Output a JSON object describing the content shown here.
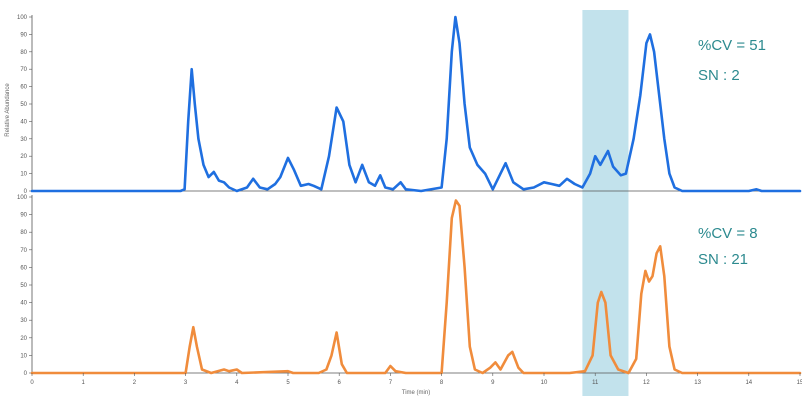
{
  "chart_data": {
    "type": "line",
    "xlabel": "Time (min)",
    "x_ticks": [
      "0",
      "1",
      "2",
      "3",
      "4",
      "5",
      "6",
      "7",
      "8",
      "9",
      "10",
      "11",
      "12",
      "13",
      "14",
      "15"
    ],
    "y_ticks": [
      "0",
      "10",
      "20",
      "30",
      "40",
      "50",
      "60",
      "70",
      "80",
      "90",
      "100"
    ],
    "xlim": [
      0,
      15
    ],
    "ylim": [
      0,
      100
    ],
    "grid": false,
    "highlight_region": {
      "x_start": 10.75,
      "x_end": 11.65,
      "color": "#add8e6"
    },
    "panels": [
      {
        "ylabel": "Relative Abundance",
        "color": "#1f6fe0",
        "annotations": [
          "%CV = 51",
          "SN : 2"
        ],
        "points": [
          [
            0,
            0
          ],
          [
            2.9,
            0
          ],
          [
            2.98,
            1
          ],
          [
            3.05,
            40
          ],
          [
            3.12,
            70
          ],
          [
            3.18,
            50
          ],
          [
            3.25,
            30
          ],
          [
            3.35,
            15
          ],
          [
            3.45,
            8
          ],
          [
            3.55,
            11
          ],
          [
            3.65,
            6
          ],
          [
            3.75,
            5
          ],
          [
            3.85,
            2
          ],
          [
            4.0,
            0
          ],
          [
            4.2,
            2
          ],
          [
            4.32,
            7
          ],
          [
            4.45,
            2
          ],
          [
            4.6,
            1
          ],
          [
            4.75,
            4
          ],
          [
            4.85,
            8
          ],
          [
            5.0,
            19
          ],
          [
            5.12,
            12
          ],
          [
            5.25,
            3
          ],
          [
            5.4,
            4
          ],
          [
            5.5,
            3
          ],
          [
            5.65,
            1
          ],
          [
            5.8,
            20
          ],
          [
            5.95,
            48
          ],
          [
            6.08,
            40
          ],
          [
            6.2,
            15
          ],
          [
            6.32,
            5
          ],
          [
            6.45,
            15
          ],
          [
            6.58,
            5
          ],
          [
            6.7,
            3
          ],
          [
            6.8,
            9
          ],
          [
            6.9,
            2
          ],
          [
            7.05,
            1
          ],
          [
            7.2,
            5
          ],
          [
            7.3,
            1
          ],
          [
            7.6,
            0
          ],
          [
            8.0,
            2
          ],
          [
            8.1,
            30
          ],
          [
            8.2,
            80
          ],
          [
            8.27,
            100
          ],
          [
            8.35,
            85
          ],
          [
            8.45,
            50
          ],
          [
            8.55,
            25
          ],
          [
            8.7,
            15
          ],
          [
            8.85,
            10
          ],
          [
            9.0,
            1
          ],
          [
            9.15,
            10
          ],
          [
            9.25,
            16
          ],
          [
            9.4,
            5
          ],
          [
            9.6,
            1
          ],
          [
            9.8,
            2
          ],
          [
            10.0,
            5
          ],
          [
            10.15,
            4
          ],
          [
            10.3,
            3
          ],
          [
            10.45,
            7
          ],
          [
            10.6,
            4
          ],
          [
            10.75,
            2
          ],
          [
            10.9,
            10
          ],
          [
            11.0,
            20
          ],
          [
            11.1,
            15
          ],
          [
            11.25,
            23
          ],
          [
            11.35,
            14
          ],
          [
            11.5,
            9
          ],
          [
            11.6,
            10
          ],
          [
            11.75,
            30
          ],
          [
            11.88,
            55
          ],
          [
            12.0,
            85
          ],
          [
            12.07,
            90
          ],
          [
            12.15,
            80
          ],
          [
            12.25,
            55
          ],
          [
            12.35,
            30
          ],
          [
            12.45,
            10
          ],
          [
            12.55,
            2
          ],
          [
            12.7,
            0
          ],
          [
            14.0,
            0
          ],
          [
            14.15,
            1
          ],
          [
            14.25,
            0
          ],
          [
            15,
            0
          ]
        ]
      },
      {
        "ylabel": "",
        "color": "#f08c3c",
        "annotations": [
          "%CV = 8",
          "SN : 21"
        ],
        "points": [
          [
            0,
            0
          ],
          [
            3.0,
            0
          ],
          [
            3.08,
            15
          ],
          [
            3.15,
            26
          ],
          [
            3.22,
            15
          ],
          [
            3.32,
            2
          ],
          [
            3.5,
            0
          ],
          [
            3.75,
            2
          ],
          [
            3.85,
            1
          ],
          [
            4.0,
            2
          ],
          [
            4.1,
            0
          ],
          [
            5.0,
            1
          ],
          [
            5.1,
            0
          ],
          [
            5.6,
            0
          ],
          [
            5.75,
            2
          ],
          [
            5.85,
            10
          ],
          [
            5.95,
            23
          ],
          [
            6.05,
            5
          ],
          [
            6.15,
            0
          ],
          [
            6.9,
            0
          ],
          [
            7.0,
            4
          ],
          [
            7.1,
            1
          ],
          [
            7.3,
            0
          ],
          [
            8.0,
            0
          ],
          [
            8.1,
            40
          ],
          [
            8.2,
            88
          ],
          [
            8.28,
            98
          ],
          [
            8.35,
            95
          ],
          [
            8.45,
            60
          ],
          [
            8.55,
            15
          ],
          [
            8.65,
            2
          ],
          [
            8.8,
            0
          ],
          [
            8.95,
            3
          ],
          [
            9.05,
            6
          ],
          [
            9.15,
            2
          ],
          [
            9.3,
            10
          ],
          [
            9.38,
            12
          ],
          [
            9.5,
            3
          ],
          [
            9.6,
            0
          ],
          [
            10.5,
            0
          ],
          [
            10.8,
            1
          ],
          [
            10.95,
            10
          ],
          [
            11.05,
            40
          ],
          [
            11.12,
            46
          ],
          [
            11.2,
            40
          ],
          [
            11.3,
            10
          ],
          [
            11.45,
            2
          ],
          [
            11.65,
            0
          ],
          [
            11.8,
            8
          ],
          [
            11.9,
            45
          ],
          [
            11.98,
            58
          ],
          [
            12.05,
            52
          ],
          [
            12.12,
            55
          ],
          [
            12.2,
            68
          ],
          [
            12.27,
            72
          ],
          [
            12.35,
            55
          ],
          [
            12.45,
            15
          ],
          [
            12.55,
            2
          ],
          [
            12.7,
            0
          ],
          [
            15,
            0
          ]
        ]
      }
    ]
  }
}
